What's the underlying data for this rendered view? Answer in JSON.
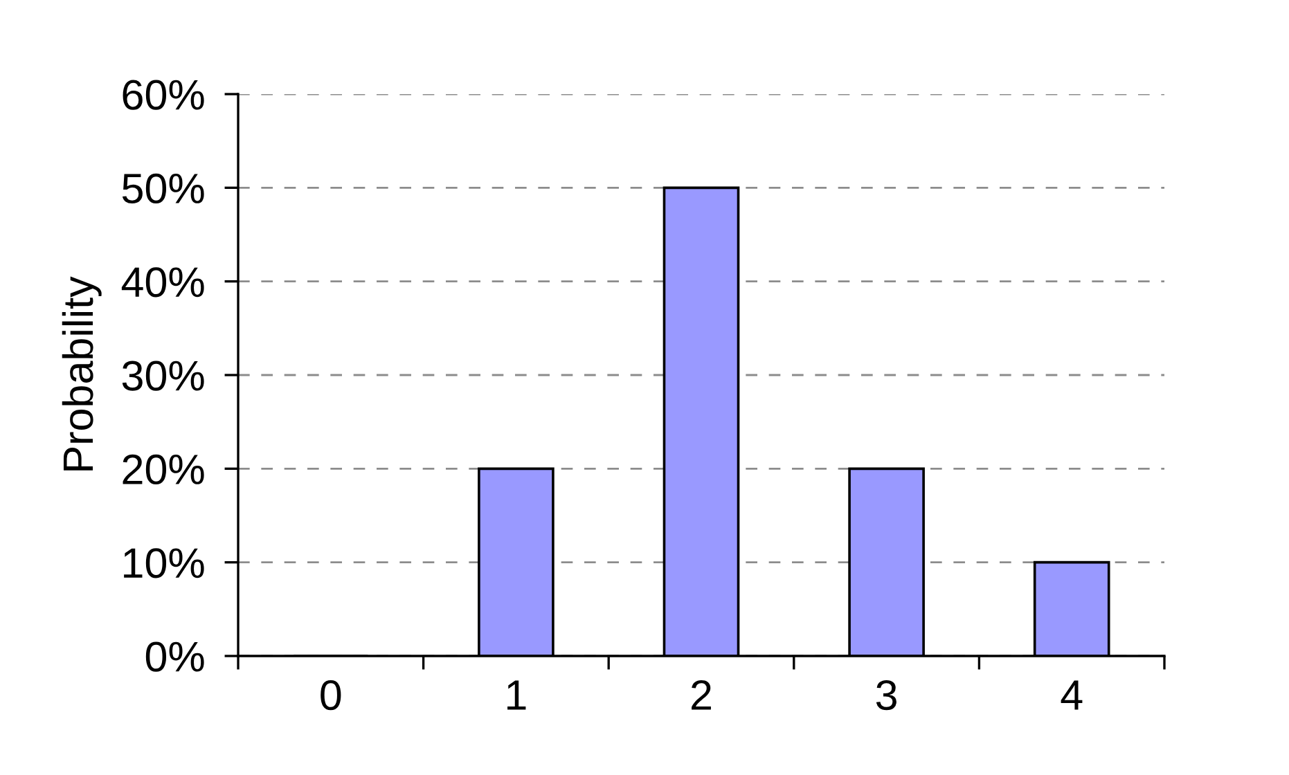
{
  "chart_data": {
    "type": "bar",
    "ylabel": "Probability",
    "categories": [
      "0",
      "1",
      "2",
      "3",
      "4"
    ],
    "values": [
      0,
      20,
      50,
      20,
      10
    ],
    "color": "#9999ff",
    "ylim": [
      0,
      60
    ],
    "yticks": [
      {
        "value": 0,
        "label": "0%"
      },
      {
        "value": 10,
        "label": "10%"
      },
      {
        "value": 20,
        "label": "20%"
      },
      {
        "value": 30,
        "label": "30%"
      },
      {
        "value": 40,
        "label": "40%"
      },
      {
        "value": 50,
        "label": "50%"
      },
      {
        "value": 60,
        "label": "60%"
      }
    ],
    "grid": "y"
  }
}
